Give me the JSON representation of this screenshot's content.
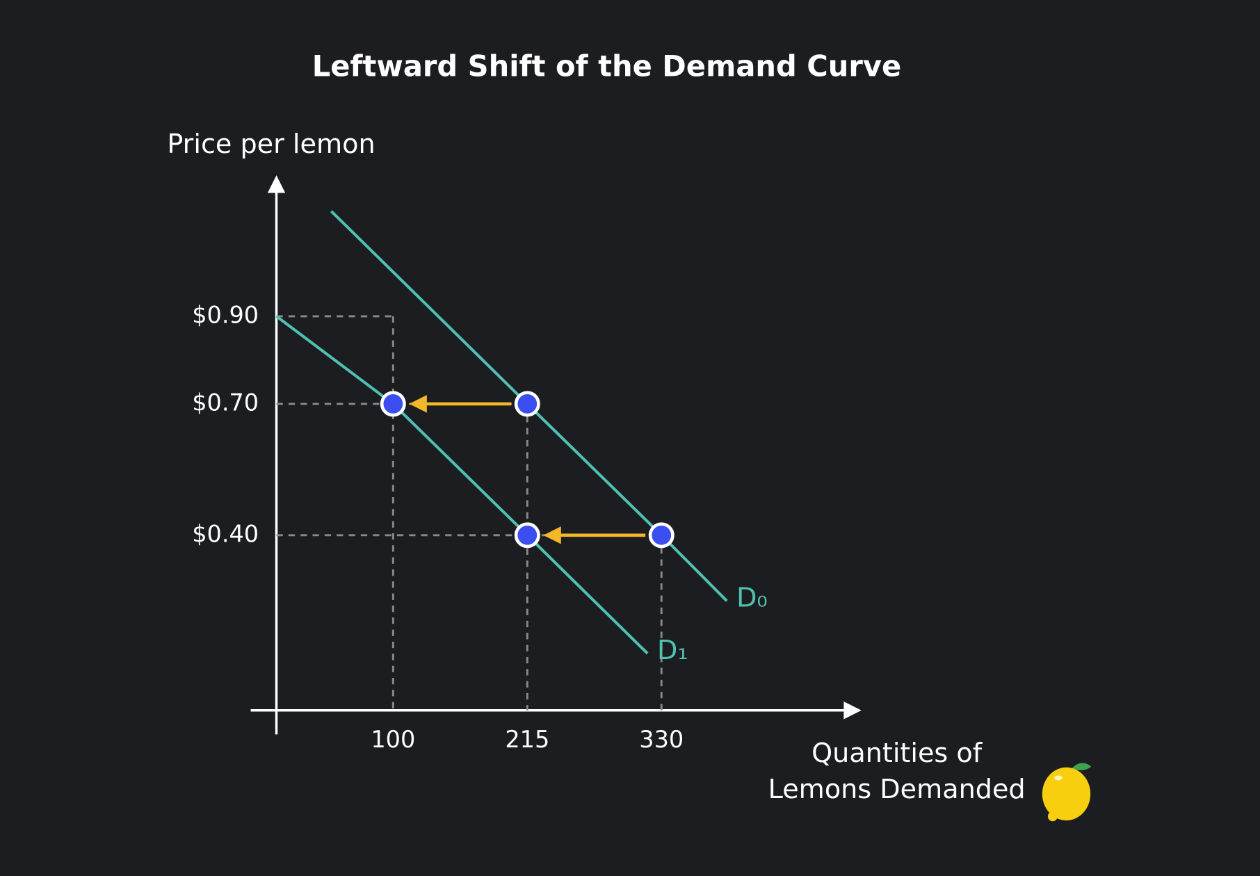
{
  "chart_data": {
    "type": "line",
    "title": "Leftward Shift of the Demand Curve",
    "ylabel": "Price per lemon",
    "xlabel": [
      "Quantities of",
      "Lemons Demanded"
    ],
    "xlim": [
      0,
      500
    ],
    "ylim": [
      0,
      1.2
    ],
    "xticks": [
      100,
      215,
      330
    ],
    "yticks": [
      {
        "value": 0.4,
        "label": "$0.40"
      },
      {
        "value": 0.7,
        "label": "$0.70"
      },
      {
        "value": 0.9,
        "label": "$0.90"
      }
    ],
    "guides": true,
    "series": [
      {
        "name": "D₀",
        "color": "#4fc1b0",
        "x": [
          47,
          215,
          330,
          386
        ],
        "values": [
          1.14,
          0.7,
          0.4,
          0.25
        ]
      },
      {
        "name": "D₁",
        "color": "#4fc1b0",
        "x": [
          0,
          100,
          215,
          318
        ],
        "values": [
          0.9,
          0.7,
          0.4,
          0.13
        ]
      }
    ],
    "shifts": [
      {
        "from": [
          215,
          0.7
        ],
        "to": [
          100,
          0.7
        ]
      },
      {
        "from": [
          330,
          0.4
        ],
        "to": [
          215,
          0.4
        ]
      }
    ],
    "marker_color": "#3b4ef0",
    "arrow_color": "#f4b728"
  }
}
